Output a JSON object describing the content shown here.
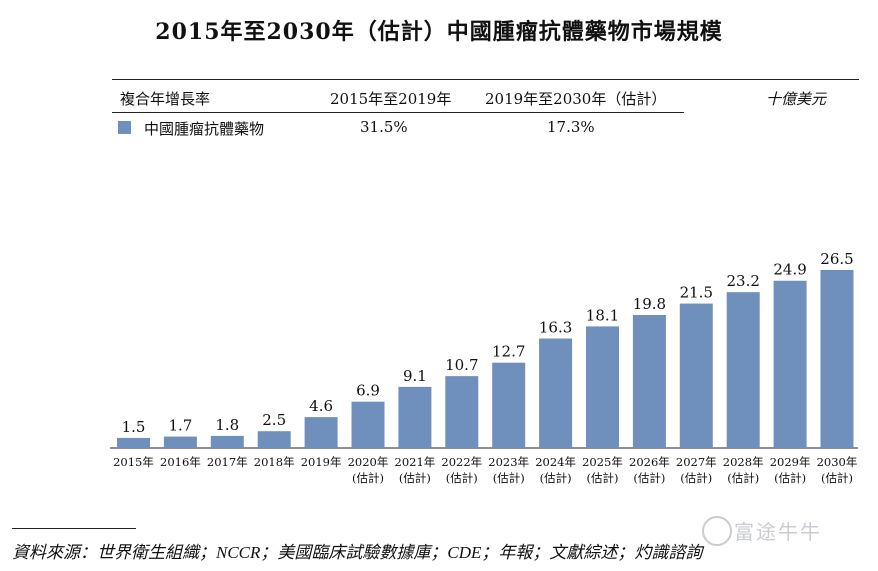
{
  "title": "2015年至2030年（估計）中國腫瘤抗體藥物市場規模",
  "table": {
    "header": {
      "col1": "複合年增長率",
      "col2": "2015年至2019年",
      "col3": "2019年至2030年（估計）",
      "unit": "十億美元"
    },
    "row": {
      "label": "中國腫瘤抗體藥物",
      "cagr1": "31.5%",
      "cagr2": "17.3%"
    }
  },
  "chart_data": {
    "type": "bar",
    "categories": [
      "2015年",
      "2016年",
      "2017年",
      "2018年",
      "2019年",
      "2020年",
      "2021年",
      "2022年",
      "2023年",
      "2024年",
      "2025年",
      "2026年",
      "2027年",
      "2028年",
      "2029年",
      "2030年"
    ],
    "sublabels": [
      "",
      "",
      "",
      "",
      "",
      "(估計)",
      "(估計)",
      "(估計)",
      "(估計)",
      "(估計)",
      "(估計)",
      "(估計)",
      "(估計)",
      "(估計)",
      "(估計)",
      "(估計)"
    ],
    "values": [
      1.5,
      1.7,
      1.8,
      2.5,
      4.6,
      6.9,
      9.1,
      10.7,
      12.7,
      16.3,
      18.1,
      19.8,
      21.5,
      23.2,
      24.9,
      26.5
    ],
    "value_labels": [
      "1.5",
      "1.7",
      "1.8",
      "2.5",
      "4.6",
      "6.9",
      "9.1",
      "10.7",
      "12.7",
      "16.3",
      "18.1",
      "19.8",
      "21.5",
      "23.2",
      "24.9",
      "26.5"
    ],
    "series": [
      {
        "values": [
          1.5,
          1.7,
          1.8,
          2.5,
          4.6,
          6.9,
          9.1,
          10.7,
          12.7,
          16.3,
          18.1,
          19.8,
          21.5,
          23.2,
          24.9,
          26.5
        ]
      }
    ],
    "bar_color": "#6f8fbd",
    "ylim": [
      0,
      26.5
    ],
    "grid": false
  },
  "source": "資料來源：世界衛生組織；NCCR；美國臨床試驗數據庫；CDE；年報；文獻綜述；灼識諮詢",
  "watermark": "富途牛牛"
}
